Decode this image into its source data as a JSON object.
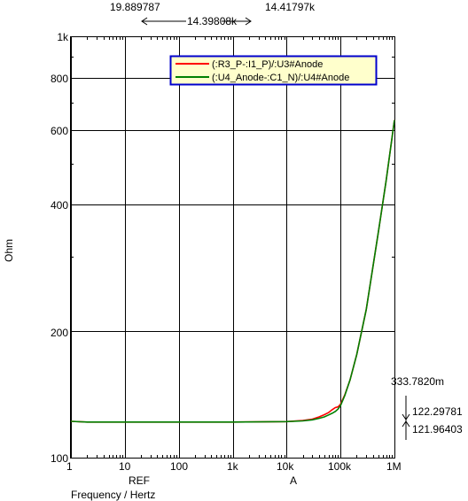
{
  "cursor_readout": {
    "ref_value": "19.889787",
    "delta_value": "14.39808k",
    "a_value": "14.41797k"
  },
  "marker_labels": {
    "ref": "REF",
    "a": "A"
  },
  "measurements": {
    "delta_y": "333.7820m",
    "value_1": "122.29781",
    "value_2": "121.96403"
  },
  "axes": {
    "ylabel": "Ohm",
    "xlabel": "Frequency / Hertz",
    "x_ticks": [
      "1",
      "10",
      "100",
      "1k",
      "10k",
      "100k",
      "1M"
    ],
    "y_ticks": [
      "100",
      "200",
      "400",
      "600",
      "800",
      "1k"
    ]
  },
  "colors": {
    "series_1": "#ff0000",
    "series_2": "#008000",
    "legend_bg": "#ffffcc",
    "legend_border": "#0000cc",
    "grid": "#000000"
  },
  "chart_data": {
    "type": "line",
    "title": "",
    "xlabel": "Frequency / Hertz",
    "ylabel": "Ohm",
    "x_scale": "log",
    "y_scale": "log",
    "xlim": [
      1,
      1000000
    ],
    "ylim": [
      100,
      1000
    ],
    "grid": true,
    "legend_position": "top-right",
    "x_tick_labels": [
      "1",
      "10",
      "100",
      "1k",
      "10k",
      "100k",
      "1M"
    ],
    "y_tick_labels": [
      "100",
      "200",
      "400",
      "600",
      "800",
      "1k"
    ],
    "series": [
      {
        "name": "(:R3_P-:I1_P)/:U3#Anode",
        "color": "#ff0000",
        "x": [
          1,
          2,
          5,
          10,
          100,
          1000,
          10000,
          20000,
          30000,
          40000,
          50000,
          60000,
          70000,
          80000,
          90000,
          100000,
          120000,
          150000,
          200000,
          300000,
          500000,
          700000,
          1000000
        ],
        "y": [
          122,
          121.5,
          121.5,
          121.5,
          121.5,
          121.5,
          121.8,
          122.5,
          123.5,
          125,
          126.5,
          128,
          130,
          131.5,
          132,
          134,
          141,
          153,
          176,
          225,
          342,
          455,
          635
        ]
      },
      {
        "name": "(:U4_Anode-:C1_N)/:U4#Anode",
        "color": "#008000",
        "x": [
          1,
          2,
          5,
          10,
          100,
          1000,
          10000,
          20000,
          30000,
          40000,
          50000,
          60000,
          70000,
          80000,
          90000,
          100000,
          120000,
          150000,
          200000,
          300000,
          500000,
          700000,
          1000000
        ],
        "y": [
          122,
          121.5,
          121.5,
          121.5,
          121.5,
          121.5,
          121.8,
          122.3,
          123,
          124,
          125,
          126.3,
          127.5,
          128.8,
          130.5,
          133,
          140.5,
          153,
          176,
          225,
          342,
          455,
          635
        ]
      }
    ]
  }
}
